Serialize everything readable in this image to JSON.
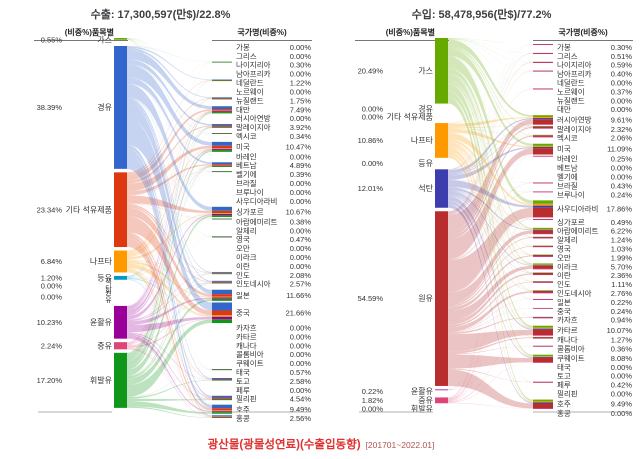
{
  "caption": {
    "title": "광산물(광물성연료)(수출입동향)",
    "period": "[201701~2022.01]",
    "color": "#e03131"
  },
  "chart_data": [
    {
      "type": "sankey",
      "title": "수출: 17,300,597(만$)/22.8%",
      "left_header": "(비중%)품목별",
      "right_header": "국가명(비중%)",
      "legend_position": "none",
      "items": [
        {
          "label": "가스",
          "pct": 0.55,
          "color": "#66AA00"
        },
        {
          "label": "경유",
          "pct": 38.39,
          "color": "#3366CC"
        },
        {
          "label": "기타 석유제품",
          "pct": 23.34,
          "color": "#DC3912"
        },
        {
          "label": "나프타",
          "pct": 6.84,
          "color": "#FF9900"
        },
        {
          "label": "등유",
          "pct": 1.2,
          "color": "#0099C6"
        },
        {
          "label": "석탄",
          "pct": 0.0,
          "color": "#3B3EAC",
          "rotate_label": true
        },
        {
          "label": "원유",
          "pct": 0.0,
          "color": "#B82E2E",
          "rotate_label": true
        },
        {
          "label": "윤활유",
          "pct": 10.23,
          "color": "#990099"
        },
        {
          "label": "중유",
          "pct": 2.24,
          "color": "#DD4477"
        },
        {
          "label": "휘발유",
          "pct": 17.2,
          "color": "#109618"
        }
      ],
      "countries": [
        {
          "label": "가봉",
          "pct": 0.0
        },
        {
          "label": "그리스",
          "pct": 0.0
        },
        {
          "label": "나이지리아",
          "pct": 0.3
        },
        {
          "label": "남아프리카",
          "pct": 0.0
        },
        {
          "label": "네덜란드",
          "pct": 1.22
        },
        {
          "label": "노르웨이",
          "pct": 0.0
        },
        {
          "label": "뉴질랜드",
          "pct": 1.75
        },
        {
          "label": "대만",
          "pct": 7.49
        },
        {
          "label": "러시아연방",
          "pct": 0.0
        },
        {
          "label": "말레이지아",
          "pct": 3.92
        },
        {
          "label": "멕시코",
          "pct": 0.34
        },
        {
          "label": "미국",
          "pct": 10.47
        },
        {
          "label": "바레인",
          "pct": 0.0
        },
        {
          "label": "베트남",
          "pct": 4.89
        },
        {
          "label": "벨기에",
          "pct": 0.39
        },
        {
          "label": "브라질",
          "pct": 0.0
        },
        {
          "label": "브루나이",
          "pct": 0.0
        },
        {
          "label": "사우디아라비",
          "pct": 0.0
        },
        {
          "label": "싱가포르",
          "pct": 10.67
        },
        {
          "label": "아랍에미리트",
          "pct": 0.38
        },
        {
          "label": "알제리",
          "pct": 0.0
        },
        {
          "label": "영국",
          "pct": 0.47
        },
        {
          "label": "오만",
          "pct": 0.0
        },
        {
          "label": "이라크",
          "pct": 0.0
        },
        {
          "label": "이란",
          "pct": 0.0
        },
        {
          "label": "인도",
          "pct": 2.08
        },
        {
          "label": "인도네시아",
          "pct": 2.57
        },
        {
          "label": "일본",
          "pct": 11.66
        },
        {
          "label": "중국",
          "pct": 21.66
        },
        {
          "label": "카자흐",
          "pct": 0.0
        },
        {
          "label": "카타르",
          "pct": 0.0
        },
        {
          "label": "캐나다",
          "pct": 0.0
        },
        {
          "label": "콜롬비아",
          "pct": 0.0
        },
        {
          "label": "쿠웨이트",
          "pct": 0.0
        },
        {
          "label": "태국",
          "pct": 0.57
        },
        {
          "label": "토고",
          "pct": 2.58
        },
        {
          "label": "페루",
          "pct": 0.0
        },
        {
          "label": "필리핀",
          "pct": 4.54
        },
        {
          "label": "호주",
          "pct": 9.49
        },
        {
          "label": "홍콩",
          "pct": 2.56
        }
      ]
    },
    {
      "type": "sankey",
      "title": "수입: 58,478,956(만$)/77.2%",
      "left_header": "(비중%)품목별",
      "right_header": "국가명(비중%)",
      "legend_position": "none",
      "items": [
        {
          "label": "가스",
          "pct": 20.49,
          "color": "#66AA00"
        },
        {
          "label": "경유",
          "pct": 0.0,
          "color": "#3366CC"
        },
        {
          "label": "기타 석유제품",
          "pct": 0.0,
          "color": "#DC3912"
        },
        {
          "label": "나프타",
          "pct": 10.86,
          "color": "#FF9900"
        },
        {
          "label": "등유",
          "pct": 0.0,
          "color": "#0099C6"
        },
        {
          "label": "석탄",
          "pct": 12.01,
          "color": "#3B3EAC"
        },
        {
          "label": "원유",
          "pct": 54.59,
          "color": "#B82E2E"
        },
        {
          "label": "윤활유",
          "pct": 0.22,
          "color": "#990099"
        },
        {
          "label": "중유",
          "pct": 1.82,
          "color": "#DD4477"
        },
        {
          "label": "휘발유",
          "pct": 0.0,
          "color": "#109618"
        }
      ],
      "countries": [
        {
          "label": "가봉",
          "pct": 0.3
        },
        {
          "label": "그리스",
          "pct": 0.51
        },
        {
          "label": "나이지리아",
          "pct": 0.59
        },
        {
          "label": "남아프리카",
          "pct": 0.4
        },
        {
          "label": "네덜란드",
          "pct": 0.0
        },
        {
          "label": "노르웨이",
          "pct": 0.37
        },
        {
          "label": "뉴질랜드",
          "pct": 0.0
        },
        {
          "label": "대만",
          "pct": 0.0
        },
        {
          "label": "러시아연방",
          "pct": 9.61
        },
        {
          "label": "말레이지아",
          "pct": 2.32
        },
        {
          "label": "멕시코",
          "pct": 2.06
        },
        {
          "label": "미국",
          "pct": 11.09
        },
        {
          "label": "바레인",
          "pct": 0.25
        },
        {
          "label": "베트남",
          "pct": 0.0
        },
        {
          "label": "벨기에",
          "pct": 0.0
        },
        {
          "label": "브라질",
          "pct": 0.43
        },
        {
          "label": "브루나이",
          "pct": 0.24
        },
        {
          "label": "사우디아라비",
          "pct": 17.86
        },
        {
          "label": "싱가포르",
          "pct": 0.49
        },
        {
          "label": "아랍에미리트",
          "pct": 6.22
        },
        {
          "label": "알제리",
          "pct": 1.24
        },
        {
          "label": "영국",
          "pct": 1.03
        },
        {
          "label": "오만",
          "pct": 1.99
        },
        {
          "label": "이라크",
          "pct": 5.7
        },
        {
          "label": "이란",
          "pct": 2.36
        },
        {
          "label": "인도",
          "pct": 1.11
        },
        {
          "label": "인도네시아",
          "pct": 2.76
        },
        {
          "label": "일본",
          "pct": 0.22
        },
        {
          "label": "중국",
          "pct": 0.24
        },
        {
          "label": "카자흐",
          "pct": 0.94
        },
        {
          "label": "카타르",
          "pct": 10.07
        },
        {
          "label": "캐나다",
          "pct": 1.27
        },
        {
          "label": "콜롬비아",
          "pct": 0.36
        },
        {
          "label": "쿠웨이트",
          "pct": 8.08
        },
        {
          "label": "태국",
          "pct": 0.0
        },
        {
          "label": "토고",
          "pct": 0.0
        },
        {
          "label": "페루",
          "pct": 0.42
        },
        {
          "label": "필리핀",
          "pct": 0.0
        },
        {
          "label": "호주",
          "pct": 9.49
        },
        {
          "label": "홍콩",
          "pct": 0.0
        }
      ]
    }
  ]
}
